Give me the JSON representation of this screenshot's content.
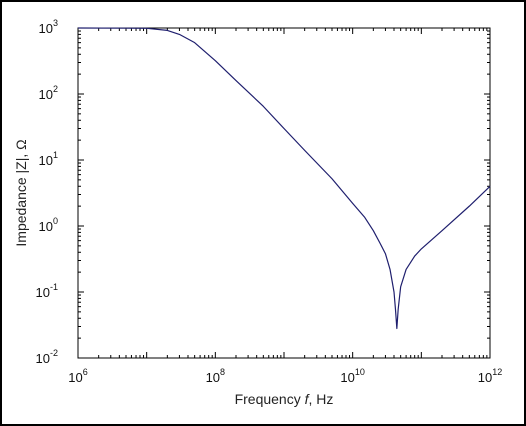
{
  "chart_data": {
    "type": "line",
    "title": "",
    "xlabel": "Frequency f, Hz",
    "xlabel_parts": {
      "prefix": "Frequency ",
      "var": "f",
      "suffix": ", Hz"
    },
    "ylabel": "Impedance |Z|, Ω",
    "x_scale": "log",
    "y_scale": "log",
    "xlim": [
      1000000.0,
      1000000000000.0
    ],
    "ylim": [
      0.01,
      1000
    ],
    "x_ticks": [
      {
        "base": "10",
        "exp": "6",
        "value": 1000000.0
      },
      {
        "base": "10",
        "exp": "8",
        "value": 100000000.0
      },
      {
        "base": "10",
        "exp": "10",
        "value": 10000000000.0
      },
      {
        "base": "10",
        "exp": "12",
        "value": 1000000000000.0
      }
    ],
    "y_ticks": [
      {
        "base": "10",
        "exp": "-2",
        "value": 0.01
      },
      {
        "base": "10",
        "exp": "-1",
        "value": 0.1
      },
      {
        "base": "10",
        "exp": "0",
        "value": 1
      },
      {
        "base": "10",
        "exp": "1",
        "value": 10
      },
      {
        "base": "10",
        "exp": "2",
        "value": 100
      },
      {
        "base": "10",
        "exp": "3",
        "value": 1000
      }
    ],
    "grid": false,
    "legend": "none",
    "line_color": "#1f1f6e",
    "series": [
      {
        "x": [
          1000000.0,
          10000000.0,
          20000000.0,
          30000000.0,
          50000000.0,
          100000000.0,
          200000000.0,
          500000000.0,
          1000000000.0,
          2000000000.0,
          5000000000.0,
          10000000000.0,
          15000000000.0,
          20000000000.0,
          25000000000.0,
          30000000000.0,
          35000000000.0,
          40000000000.0,
          42000000000.0,
          44000000000.0,
          46000000000.0,
          50000000000.0,
          60000000000.0,
          80000000000.0,
          100000000000.0,
          200000000000.0,
          500000000000.0,
          1000000000000.0
        ],
        "y": [
          1000,
          990,
          920,
          800,
          600,
          320,
          160,
          65,
          30,
          14,
          5.2,
          2.2,
          1.35,
          0.85,
          0.55,
          0.38,
          0.22,
          0.1,
          0.055,
          0.028,
          0.055,
          0.12,
          0.22,
          0.35,
          0.45,
          0.85,
          2.0,
          4.0
        ]
      }
    ]
  }
}
